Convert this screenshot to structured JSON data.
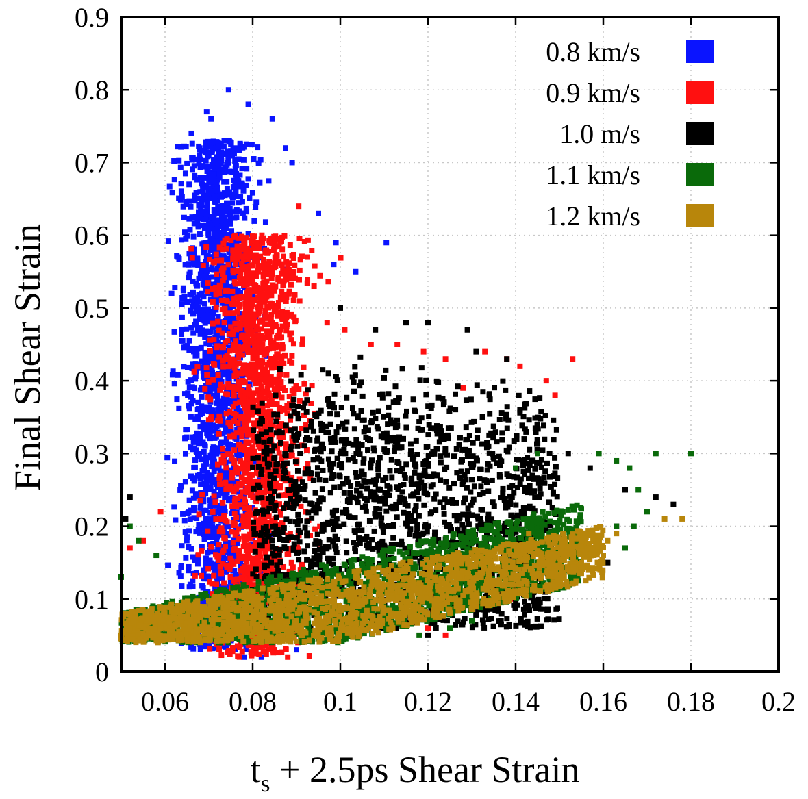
{
  "chart_data": {
    "type": "scatter",
    "title": "",
    "xlabel_main": "t",
    "xlabel_sub": "s",
    "xlabel_rest": " + 2.5ps Shear Strain",
    "ylabel": "Final Shear Strain",
    "xlim": [
      0.05,
      0.2
    ],
    "ylim": [
      0,
      0.9
    ],
    "xticks": [
      0.06,
      0.08,
      0.1,
      0.12,
      0.14,
      0.16,
      0.18,
      0.2
    ],
    "xtick_labels": [
      "0.06",
      "0.08",
      "0.1",
      "0.12",
      "0.14",
      "0.16",
      "0.18",
      "0.2"
    ],
    "yticks": [
      0,
      0.1,
      0.2,
      0.3,
      0.4,
      0.5,
      0.6,
      0.7,
      0.8,
      0.9
    ],
    "ytick_labels": [
      "0",
      "0.1",
      "0.2",
      "0.3",
      "0.4",
      "0.5",
      "0.6",
      "0.7",
      "0.8",
      "0.9"
    ],
    "grid": true,
    "legend_position": "top-right",
    "series": [
      {
        "name": "0.8 km/s",
        "color": "#0a14ff",
        "dense_region": {
          "x_center": 0.072,
          "x_spread": 0.004,
          "y_min": 0.03,
          "y_max": 0.73,
          "y_peak": 0.62
        },
        "points": [
          [
            0.0745,
            0.8
          ],
          [
            0.0695,
            0.77
          ],
          [
            0.0705,
            0.76
          ],
          [
            0.066,
            0.74
          ],
          [
            0.079,
            0.78
          ],
          [
            0.0845,
            0.76
          ],
          [
            0.0875,
            0.72
          ],
          [
            0.089,
            0.7
          ],
          [
            0.0655,
            0.67
          ],
          [
            0.063,
            0.57
          ],
          [
            0.0615,
            0.52
          ],
          [
            0.095,
            0.63
          ],
          [
            0.099,
            0.59
          ],
          [
            0.0985,
            0.56
          ],
          [
            0.1105,
            0.59
          ],
          [
            0.1035,
            0.55
          ],
          [
            0.078,
            0.02
          ],
          [
            0.082,
            0.02
          ],
          [
            0.09,
            0.03
          ]
        ]
      },
      {
        "name": "0.9 km/s",
        "color": "#ff1010",
        "dense_region": {
          "x_center": 0.081,
          "x_spread": 0.005,
          "y_min": 0.02,
          "y_max": 0.6,
          "y_peak": 0.45
        },
        "points": [
          [
            0.0905,
            0.64
          ],
          [
            0.0925,
            0.57
          ],
          [
            0.094,
            0.53
          ],
          [
            0.097,
            0.48
          ],
          [
            0.101,
            0.47
          ],
          [
            0.107,
            0.45
          ],
          [
            0.113,
            0.45
          ],
          [
            0.119,
            0.44
          ],
          [
            0.124,
            0.43
          ],
          [
            0.133,
            0.44
          ],
          [
            0.138,
            0.43
          ],
          [
            0.141,
            0.42
          ],
          [
            0.147,
            0.4
          ],
          [
            0.153,
            0.43
          ],
          [
            0.149,
            0.38
          ],
          [
            0.128,
            0.39
          ],
          [
            0.059,
            0.22
          ],
          [
            0.055,
            0.18
          ],
          [
            0.052,
            0.17
          ],
          [
            0.139,
            0.1
          ],
          [
            0.124,
            0.05
          ],
          [
            0.088,
            0.02
          ],
          [
            0.12,
            0.06
          ]
        ]
      },
      {
        "name": "1.0 m/s",
        "color": "#000000",
        "dense_region": {
          "x_center": 0.1,
          "x_spread": 0.014,
          "y_min": 0.04,
          "y_max": 0.42,
          "y_peak": 0.3
        },
        "points": [
          [
            0.1,
            0.5
          ],
          [
            0.108,
            0.47
          ],
          [
            0.115,
            0.48
          ],
          [
            0.12,
            0.48
          ],
          [
            0.129,
            0.47
          ],
          [
            0.131,
            0.44
          ],
          [
            0.138,
            0.43
          ],
          [
            0.134,
            0.38
          ],
          [
            0.141,
            0.36
          ],
          [
            0.145,
            0.34
          ],
          [
            0.152,
            0.3
          ],
          [
            0.157,
            0.28
          ],
          [
            0.165,
            0.25
          ],
          [
            0.172,
            0.24
          ],
          [
            0.176,
            0.23
          ],
          [
            0.163,
            0.2
          ],
          [
            0.158,
            0.18
          ],
          [
            0.161,
            0.15
          ],
          [
            0.052,
            0.24
          ],
          [
            0.051,
            0.21
          ],
          [
            0.138,
            0.11
          ],
          [
            0.13,
            0.07
          ],
          [
            0.12,
            0.05
          ],
          [
            0.143,
            0.13
          ]
        ]
      },
      {
        "name": "1.1 km/s",
        "color": "#0a6a0a",
        "dense_region": {
          "x_center": 0.11,
          "x_spread": 0.025,
          "y_min": 0.03,
          "y_max": 0.3,
          "y_peak": 0.22
        },
        "points": [
          [
            0.18,
            0.3
          ],
          [
            0.172,
            0.3
          ],
          [
            0.163,
            0.29
          ],
          [
            0.159,
            0.3
          ],
          [
            0.166,
            0.28
          ],
          [
            0.168,
            0.25
          ],
          [
            0.17,
            0.22
          ],
          [
            0.167,
            0.2
          ],
          [
            0.163,
            0.2
          ],
          [
            0.165,
            0.17
          ],
          [
            0.145,
            0.3
          ],
          [
            0.14,
            0.28
          ],
          [
            0.052,
            0.2
          ],
          [
            0.054,
            0.18
          ],
          [
            0.058,
            0.16
          ],
          [
            0.05,
            0.13
          ],
          [
            0.125,
            0.06
          ],
          [
            0.13,
            0.07
          ],
          [
            0.118,
            0.05
          ]
        ]
      },
      {
        "name": "1.2 km/s",
        "color": "#b8860b",
        "dense_region": {
          "x_center": 0.115,
          "x_spread": 0.025,
          "y_min": 0.03,
          "y_max": 0.24,
          "y_peak": 0.18
        },
        "points": [
          [
            0.178,
            0.21
          ],
          [
            0.174,
            0.21
          ],
          [
            0.163,
            0.19
          ],
          [
            0.161,
            0.18
          ],
          [
            0.16,
            0.16
          ],
          [
            0.155,
            0.15
          ],
          [
            0.152,
            0.14
          ],
          [
            0.05,
            0.05
          ],
          [
            0.052,
            0.06
          ],
          [
            0.143,
            0.19
          ]
        ]
      }
    ]
  }
}
